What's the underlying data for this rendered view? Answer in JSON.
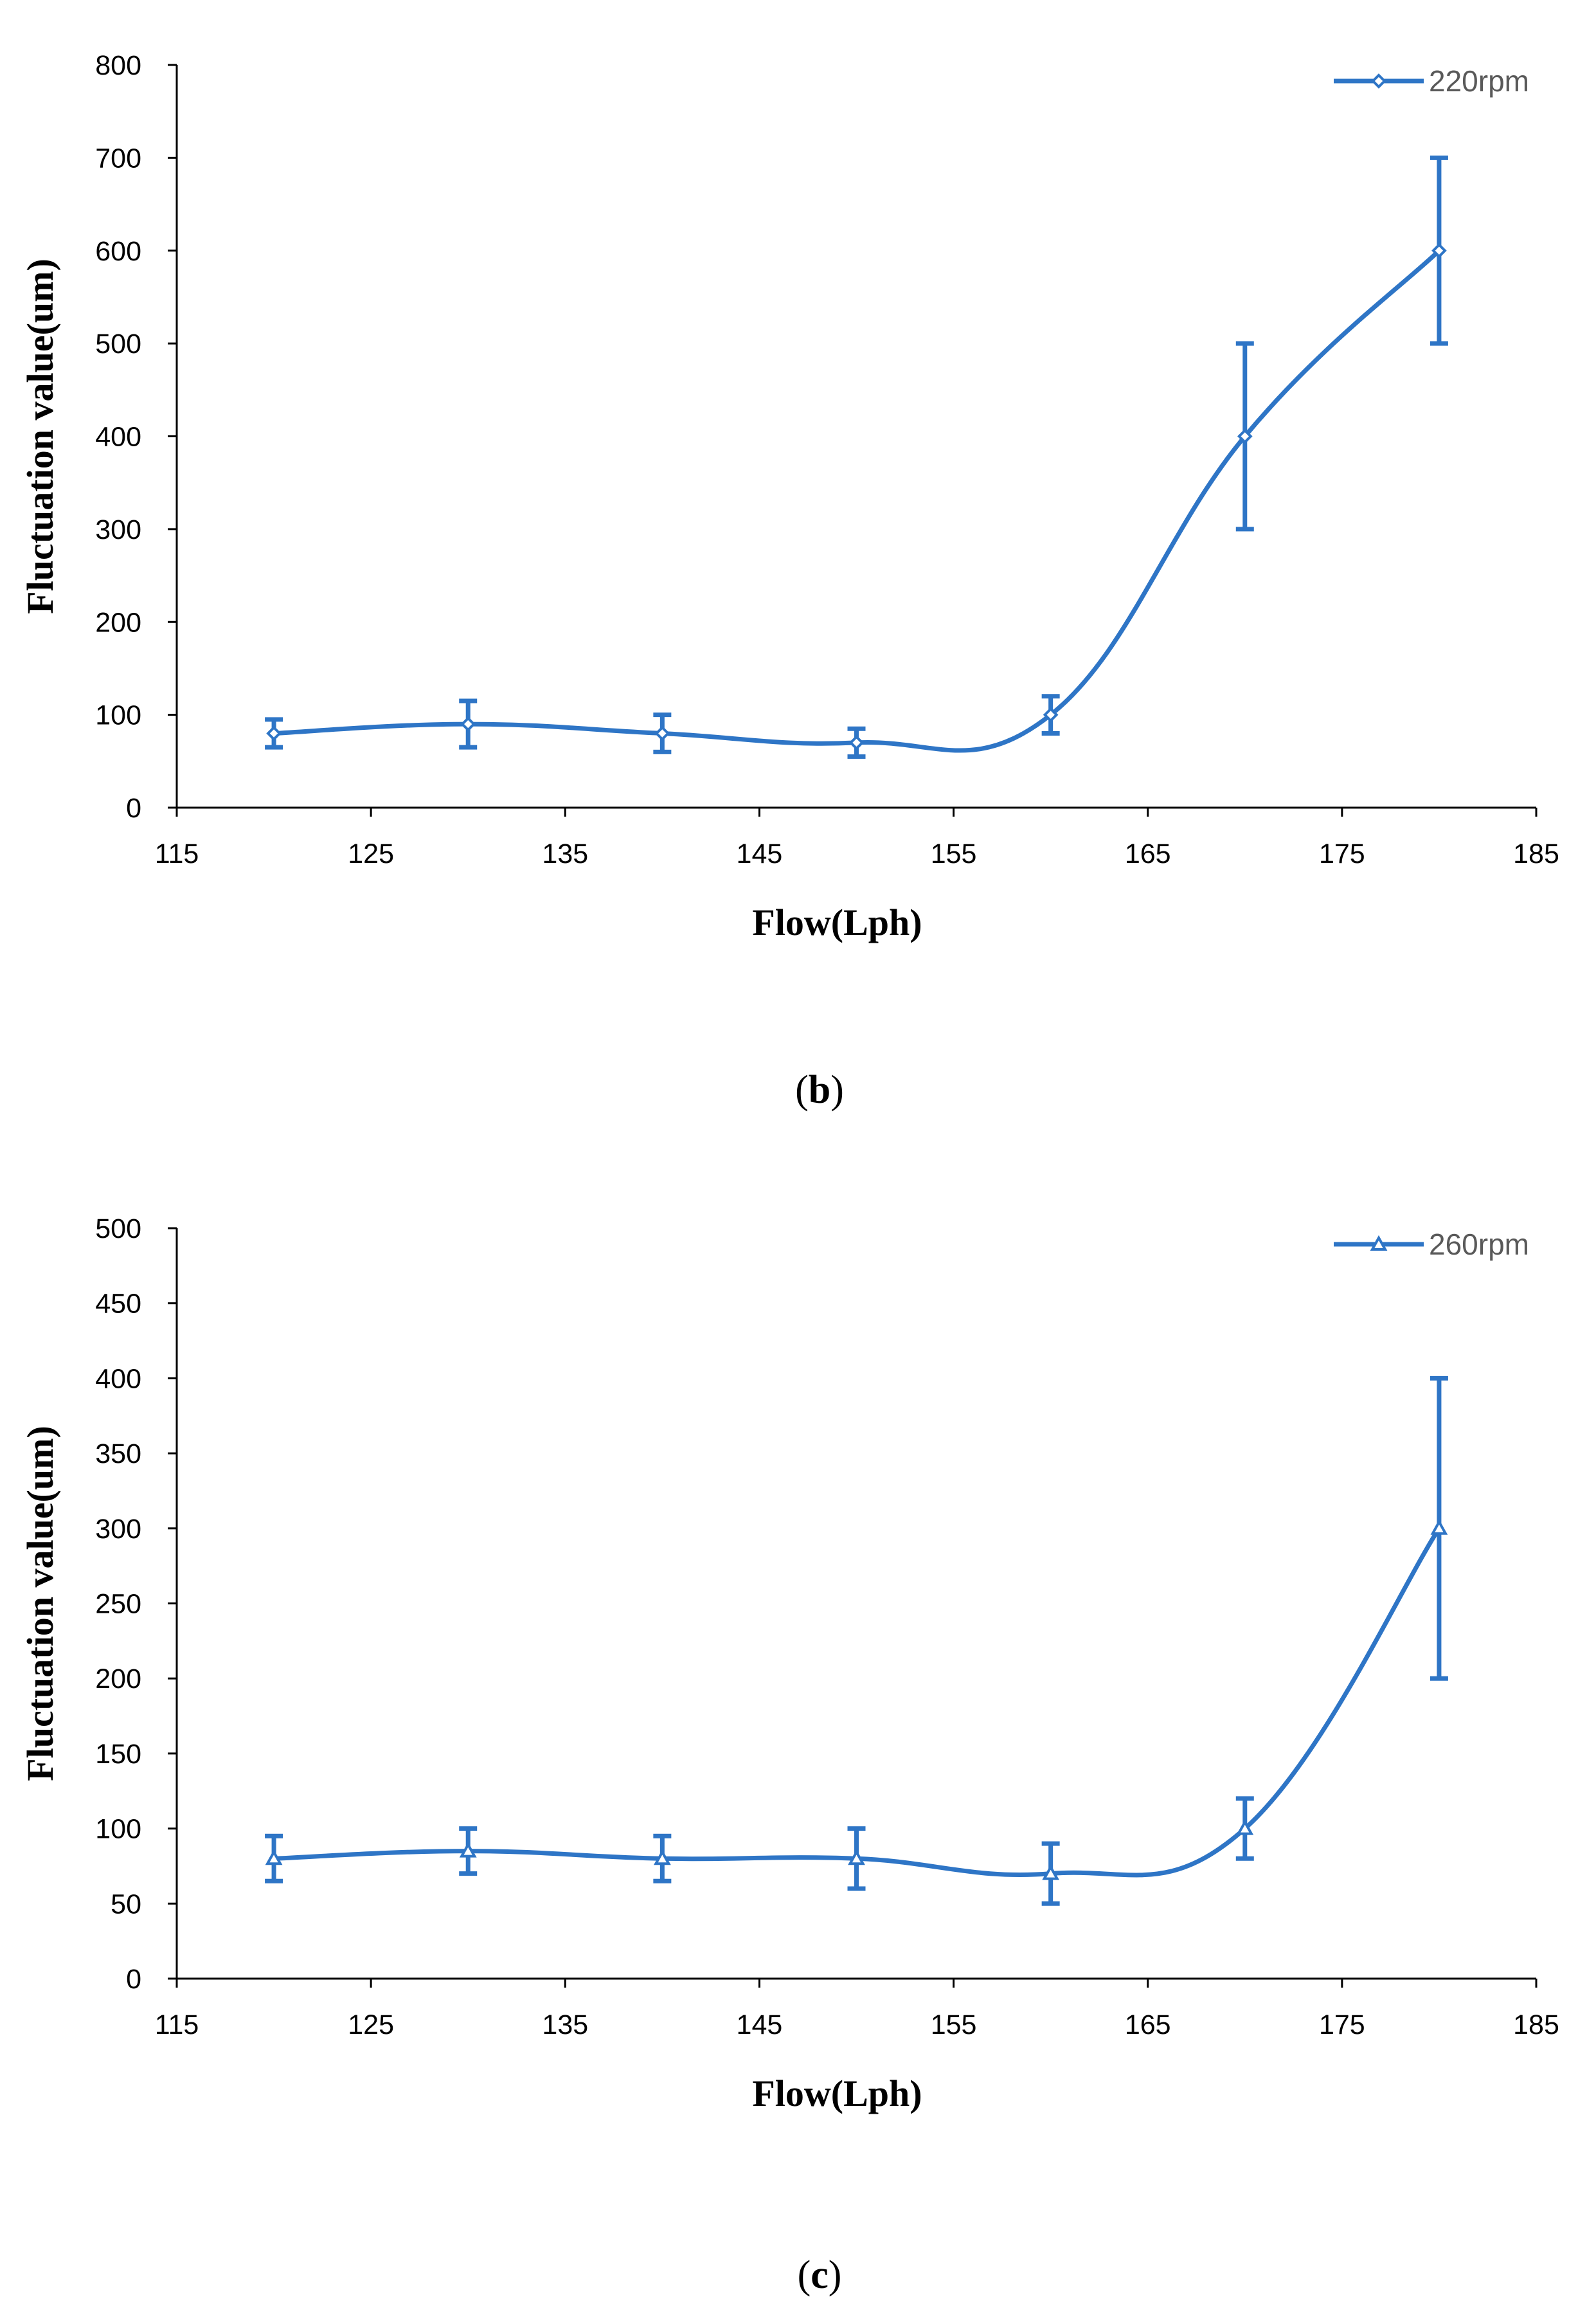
{
  "colors": {
    "series": "#2E75C6",
    "axis": "#000000",
    "text": "#000000",
    "legend_text": "#595959"
  },
  "chart_data": [
    {
      "id": "b",
      "type": "line",
      "smooth": true,
      "marker": "diamond",
      "caption": {
        "open": "(",
        "letter": "b",
        "close": ")"
      },
      "xlabel": "Flow(Lph)",
      "ylabel": "Fluctuation value(um)",
      "xlim": [
        115,
        185
      ],
      "ylim": [
        0,
        800
      ],
      "xticks": [
        115,
        125,
        135,
        145,
        155,
        165,
        175,
        185
      ],
      "yticks": [
        0,
        100,
        200,
        300,
        400,
        500,
        600,
        700,
        800
      ],
      "legend_position": "top-right",
      "grid": false,
      "series": [
        {
          "name": "220rpm",
          "x": [
            120,
            130,
            140,
            150,
            160,
            170,
            180
          ],
          "y": [
            80,
            90,
            80,
            70,
            100,
            400,
            600
          ],
          "error": [
            15,
            25,
            20,
            15,
            20,
            100,
            100
          ]
        }
      ]
    },
    {
      "id": "c",
      "type": "line",
      "smooth": true,
      "marker": "triangle",
      "caption": {
        "open": "(",
        "letter": "c",
        "close": ")"
      },
      "xlabel": "Flow(Lph)",
      "ylabel": "Fluctuation value(um)",
      "xlim": [
        115,
        185
      ],
      "ylim": [
        0,
        500
      ],
      "xticks": [
        115,
        125,
        135,
        145,
        155,
        165,
        175,
        185
      ],
      "yticks": [
        0,
        50,
        100,
        150,
        200,
        250,
        300,
        350,
        400,
        450,
        500
      ],
      "legend_position": "top-right",
      "grid": false,
      "series": [
        {
          "name": "260rpm",
          "x": [
            120,
            130,
            140,
            150,
            160,
            170,
            180
          ],
          "y": [
            80,
            85,
            80,
            80,
            70,
            100,
            300
          ],
          "error": [
            15,
            15,
            15,
            20,
            20,
            20,
            100
          ]
        }
      ]
    }
  ]
}
